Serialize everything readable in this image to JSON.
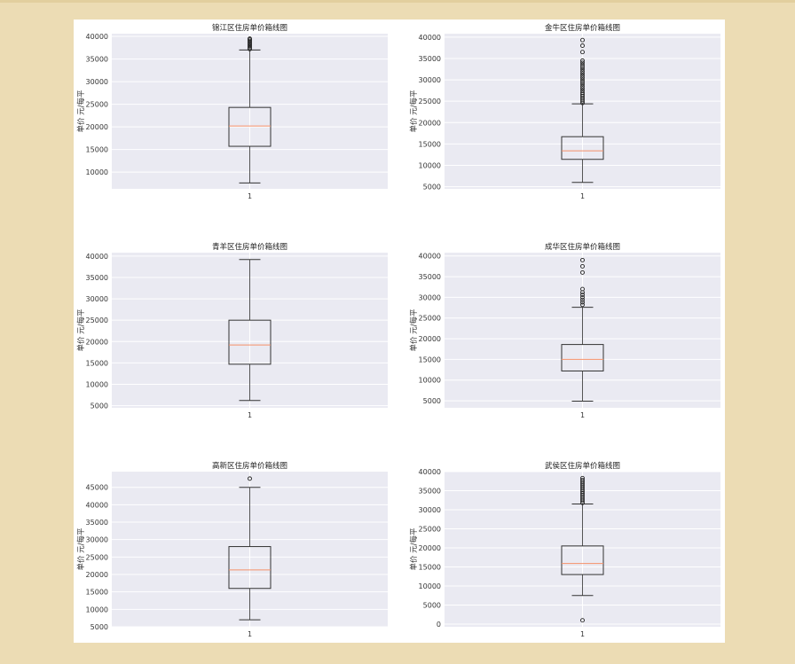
{
  "chart_data": [
    {
      "type": "box",
      "title": "锦江区住房单价箱线图",
      "ylabel": "单价 元/每平",
      "xticks": [
        "1"
      ],
      "ylim": [
        6300,
        40600
      ],
      "yticks": [
        10000,
        15000,
        20000,
        25000,
        30000,
        35000,
        40000
      ],
      "whisker_low": 7600,
      "q1": 15700,
      "median": 20200,
      "q3": 24300,
      "whisker_high": 37000,
      "fliers": [
        37200,
        37500,
        37800,
        38100,
        38400,
        38700,
        39000,
        39300,
        39500
      ]
    },
    {
      "type": "box",
      "title": "金牛区住房单价箱线图",
      "ylabel": "单价 元/每平",
      "xticks": [
        "1"
      ],
      "ylim": [
        4500,
        40800
      ],
      "yticks": [
        5000,
        10000,
        15000,
        20000,
        25000,
        30000,
        35000,
        40000
      ],
      "whisker_low": 6000,
      "q1": 11400,
      "median": 13400,
      "q3": 16700,
      "whisker_high": 24400,
      "fliers": [
        24600,
        25000,
        25400,
        25800,
        26200,
        26600,
        27000,
        27500,
        28000,
        28500,
        29000,
        29500,
        30000,
        30500,
        31000,
        31500,
        32000,
        32500,
        33000,
        33500,
        34000,
        34500,
        36500,
        38000,
        39300
      ]
    },
    {
      "type": "box",
      "title": "青羊区住房单价箱线图",
      "ylabel": "单价 元/每平",
      "xticks": [
        "1"
      ],
      "ylim": [
        4500,
        40800
      ],
      "yticks": [
        5000,
        10000,
        15000,
        20000,
        25000,
        30000,
        35000,
        40000
      ],
      "whisker_low": 6200,
      "q1": 14700,
      "median": 19200,
      "q3": 25000,
      "whisker_high": 39200,
      "fliers": []
    },
    {
      "type": "box",
      "title": "成华区住房单价箱线图",
      "ylabel": "单价 元/每平",
      "xticks": [
        "1"
      ],
      "ylim": [
        3300,
        40800
      ],
      "yticks": [
        5000,
        10000,
        15000,
        20000,
        25000,
        30000,
        35000,
        40000
      ],
      "whisker_low": 4900,
      "q1": 12200,
      "median": 15000,
      "q3": 18600,
      "whisker_high": 27600,
      "fliers": [
        28200,
        28800,
        29400,
        30000,
        30600,
        31200,
        32000,
        36000,
        37500,
        39000
      ]
    },
    {
      "type": "box",
      "title": "高新区住房单价箱线图",
      "ylabel": "单价 元/每平",
      "xticks": [
        "1"
      ],
      "ylim": [
        5000,
        49500
      ],
      "yticks": [
        5000,
        10000,
        15000,
        20000,
        25000,
        30000,
        35000,
        40000,
        45000
      ],
      "whisker_low": 7000,
      "q1": 16000,
      "median": 21300,
      "q3": 28000,
      "whisker_high": 45000,
      "fliers": [
        47500
      ]
    },
    {
      "type": "box",
      "title": "武侯区住房单价箱线图",
      "ylabel": "单价 元/每平",
      "xticks": [
        "1"
      ],
      "ylim": [
        -700,
        40000
      ],
      "yticks": [
        0,
        5000,
        10000,
        15000,
        20000,
        25000,
        30000,
        35000,
        40000
      ],
      "whisker_low": 7500,
      "q1": 13000,
      "median": 15900,
      "q3": 20500,
      "whisker_high": 31500,
      "fliers": [
        1000,
        31800,
        32300,
        32800,
        33300,
        33800,
        34300,
        34800,
        35300,
        35800,
        36300,
        36800,
        37300,
        37800,
        38300
      ]
    }
  ],
  "colors": {
    "axes_bg": "#eaeaf2",
    "grid": "#ffffff",
    "median": "#f5916a",
    "box": "#333333"
  }
}
